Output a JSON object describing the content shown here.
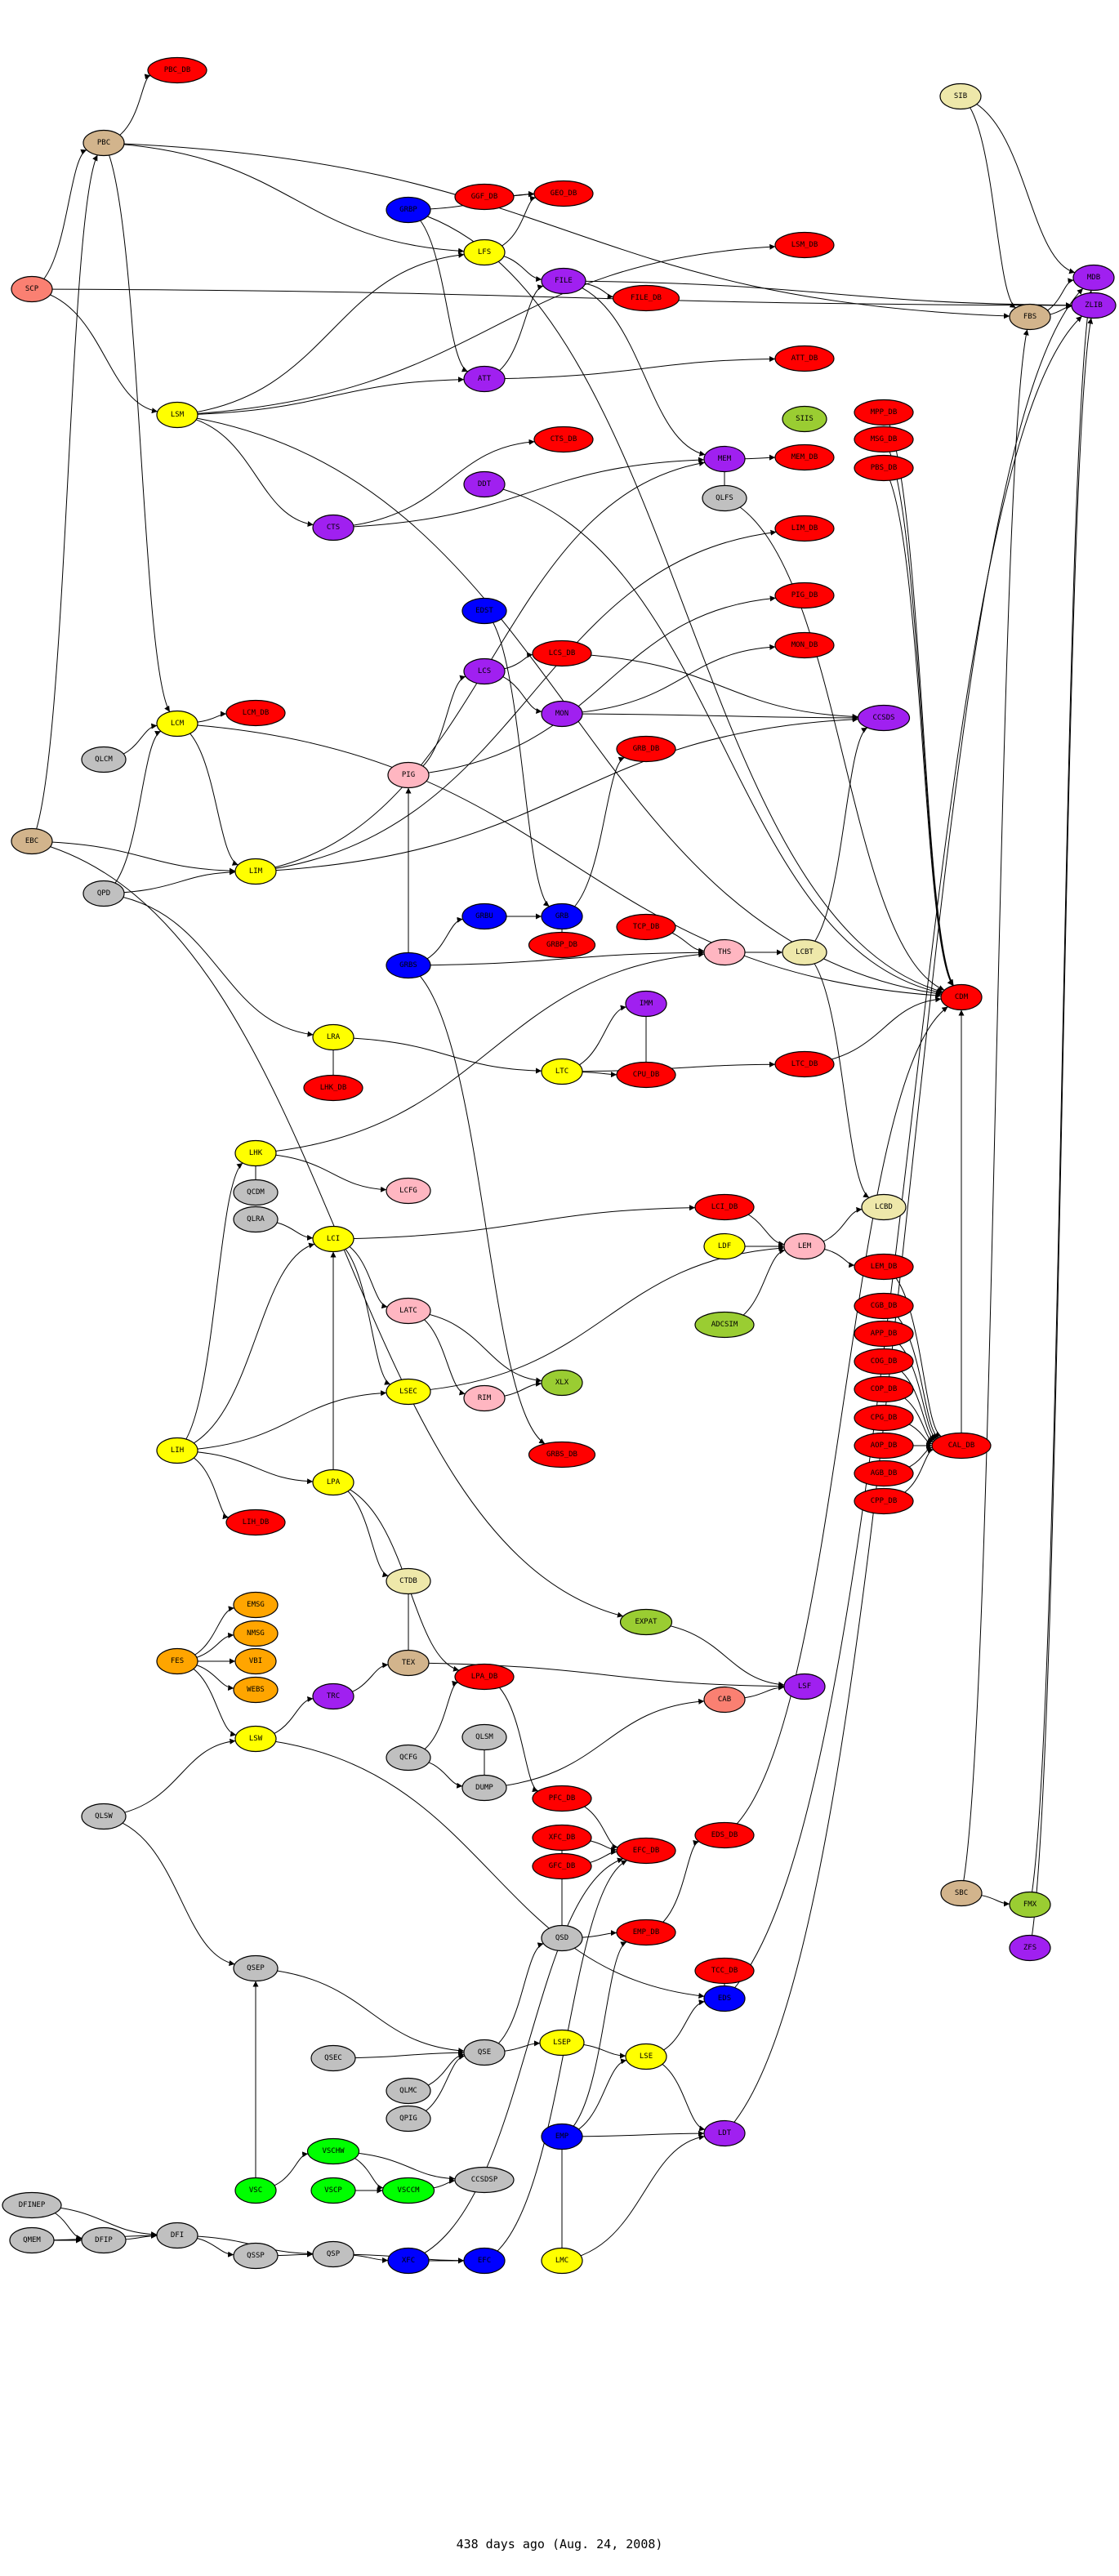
{
  "caption": "438 days ago (Aug. 24, 2008)",
  "colors": {
    "db": "#ff0000",
    "tan": "#d2b48c",
    "salmon": "#fa8072",
    "blue": "#0000ff",
    "yellow": "#ffff00",
    "purple": "#a020f0",
    "khaki": "#eee8aa",
    "pink": "#ffb6c1",
    "yellowgreen": "#9acd32",
    "gray": "#c0c0c0",
    "green": "#00ff00",
    "orange": "#ffa500"
  },
  "nodes": [
    {
      "label": "PBC_DB",
      "color": "#ff0000"
    },
    {
      "label": "PBC",
      "color": "#d2b48c"
    },
    {
      "label": "SCP",
      "color": "#fa8072"
    },
    {
      "label": "GRBP",
      "color": "#0000ff"
    },
    {
      "label": "GGF_DB",
      "color": "#ff0000"
    },
    {
      "label": "GEO_DB",
      "color": "#ff0000"
    },
    {
      "label": "LFS",
      "color": "#ffff00"
    },
    {
      "label": "FILE",
      "color": "#a020f0"
    },
    {
      "label": "LSM",
      "color": "#ffff00"
    },
    {
      "label": "ATT",
      "color": "#a020f0"
    },
    {
      "label": "CTS_DB",
      "color": "#ff0000"
    },
    {
      "label": "DDT",
      "color": "#a020f0"
    },
    {
      "label": "CTS",
      "color": "#a020f0"
    },
    {
      "label": "SIB",
      "color": "#eee8aa"
    },
    {
      "label": "LSM_DB",
      "color": "#ff0000"
    },
    {
      "label": "MDB",
      "color": "#a020f0"
    },
    {
      "label": "ZLIB",
      "color": "#a020f0"
    },
    {
      "label": "FBS",
      "color": "#d2b48c"
    },
    {
      "label": "FILE_DB",
      "color": "#ff0000"
    },
    {
      "label": "ATT_DB",
      "color": "#ff0000"
    },
    {
      "label": "SIIS",
      "color": "#9acd32"
    },
    {
      "label": "MPP_DB",
      "color": "#ff0000"
    },
    {
      "label": "MSG_DB",
      "color": "#ff0000"
    },
    {
      "label": "PBS_DB",
      "color": "#ff0000"
    },
    {
      "label": "MEM",
      "color": "#a020f0"
    },
    {
      "label": "MEM_DB",
      "color": "#ff0000"
    },
    {
      "label": "QLFS",
      "color": "#c0c0c0"
    },
    {
      "label": "LIM_DB",
      "color": "#ff0000"
    },
    {
      "label": "EDST",
      "color": "#0000ff"
    },
    {
      "label": "LCS_DB",
      "color": "#ff0000"
    },
    {
      "label": "LCS",
      "color": "#a020f0"
    },
    {
      "label": "MON",
      "color": "#a020f0"
    },
    {
      "label": "LCM",
      "color": "#ffff00"
    },
    {
      "label": "LCM_DB",
      "color": "#ff0000"
    },
    {
      "label": "QLCM",
      "color": "#c0c0c0"
    },
    {
      "label": "PIG",
      "color": "#ffb6c1"
    },
    {
      "label": "EBC",
      "color": "#d2b48c"
    },
    {
      "label": "LIM",
      "color": "#ffff00"
    },
    {
      "label": "QPD",
      "color": "#c0c0c0"
    },
    {
      "label": "GRBU",
      "color": "#0000ff"
    },
    {
      "label": "GRB",
      "color": "#0000ff"
    },
    {
      "label": "GRBP_DB",
      "color": "#ff0000"
    },
    {
      "label": "GRBS",
      "color": "#0000ff"
    },
    {
      "label": "LRA",
      "color": "#ffff00"
    },
    {
      "label": "LHK_DB",
      "color": "#ff0000"
    },
    {
      "label": "LTC",
      "color": "#ffff00"
    },
    {
      "label": "PIG_DB",
      "color": "#ff0000"
    },
    {
      "label": "MON_DB",
      "color": "#ff0000"
    },
    {
      "label": "CCSDS",
      "color": "#a020f0"
    },
    {
      "label": "GRB_DB",
      "color": "#ff0000"
    },
    {
      "label": "TCP_DB",
      "color": "#ff0000"
    },
    {
      "label": "THS",
      "color": "#ffb6c1"
    },
    {
      "label": "LCBT",
      "color": "#eee8aa"
    },
    {
      "label": "CDM",
      "color": "#ff0000"
    },
    {
      "label": "IMM",
      "color": "#a020f0"
    },
    {
      "label": "CPU_DB",
      "color": "#ff0000"
    },
    {
      "label": "LTC_DB",
      "color": "#ff0000"
    },
    {
      "label": "LHK",
      "color": "#ffff00"
    },
    {
      "label": "QCDM",
      "color": "#c0c0c0"
    },
    {
      "label": "QLRA",
      "color": "#c0c0c0"
    },
    {
      "label": "LCFG",
      "color": "#ffb6c1"
    },
    {
      "label": "LCI",
      "color": "#ffff00"
    },
    {
      "label": "LATC",
      "color": "#ffb6c1"
    },
    {
      "label": "LSEC",
      "color": "#ffff00"
    },
    {
      "label": "RIM",
      "color": "#ffb6c1"
    },
    {
      "label": "XLX",
      "color": "#9acd32"
    },
    {
      "label": "LIH",
      "color": "#ffff00"
    },
    {
      "label": "GRBS_DB",
      "color": "#ff0000"
    },
    {
      "label": "LPA",
      "color": "#ffff00"
    },
    {
      "label": "LIH_DB",
      "color": "#ff0000"
    },
    {
      "label": "CTDB",
      "color": "#eee8aa"
    },
    {
      "label": "EMSG",
      "color": "#ffa500"
    },
    {
      "label": "NMSG",
      "color": "#ffa500"
    },
    {
      "label": "FES",
      "color": "#ffa500"
    },
    {
      "label": "VBI",
      "color": "#ffa500"
    },
    {
      "label": "TEX",
      "color": "#d2b48c"
    },
    {
      "label": "LPA_DB",
      "color": "#ff0000"
    },
    {
      "label": "LCI_DB",
      "color": "#ff0000"
    },
    {
      "label": "LCBD",
      "color": "#eee8aa"
    },
    {
      "label": "LDF",
      "color": "#ffff00"
    },
    {
      "label": "LEM",
      "color": "#ffb6c1"
    },
    {
      "label": "LEM_DB",
      "color": "#ff0000"
    },
    {
      "label": "CGB_DB",
      "color": "#ff0000"
    },
    {
      "label": "APP_DB",
      "color": "#ff0000"
    },
    {
      "label": "COG_DB",
      "color": "#ff0000"
    },
    {
      "label": "COP_DB",
      "color": "#ff0000"
    },
    {
      "label": "CPG_DB",
      "color": "#ff0000"
    },
    {
      "label": "AOP_DB",
      "color": "#ff0000"
    },
    {
      "label": "AGB_DB",
      "color": "#ff0000"
    },
    {
      "label": "CPP_DB",
      "color": "#ff0000"
    },
    {
      "label": "CAL_DB",
      "color": "#ff0000"
    },
    {
      "label": "ADCSIM",
      "color": "#9acd32"
    },
    {
      "label": "EXPAT",
      "color": "#9acd32"
    },
    {
      "label": "LSF",
      "color": "#a020f0"
    },
    {
      "label": "WEBS",
      "color": "#ffa500"
    },
    {
      "label": "TRC",
      "color": "#a020f0"
    },
    {
      "label": "LSW",
      "color": "#ffff00"
    },
    {
      "label": "QLSM",
      "color": "#c0c0c0"
    },
    {
      "label": "QCFG",
      "color": "#c0c0c0"
    },
    {
      "label": "DUMP",
      "color": "#c0c0c0"
    },
    {
      "label": "QLSW",
      "color": "#c0c0c0"
    },
    {
      "label": "PFC_DB",
      "color": "#ff0000"
    },
    {
      "label": "XFC_DB",
      "color": "#ff0000"
    },
    {
      "label": "GFC_DB",
      "color": "#ff0000"
    },
    {
      "label": "QSD",
      "color": "#c0c0c0"
    },
    {
      "label": "QSEP",
      "color": "#c0c0c0"
    },
    {
      "label": "LSEP",
      "color": "#ffff00"
    },
    {
      "label": "QSE",
      "color": "#c0c0c0"
    },
    {
      "label": "QSEC",
      "color": "#c0c0c0"
    },
    {
      "label": "QLMC",
      "color": "#c0c0c0"
    },
    {
      "label": "QPIG",
      "color": "#c0c0c0"
    },
    {
      "label": "EMP",
      "color": "#0000ff"
    },
    {
      "label": "VSCHW",
      "color": "#00ff00"
    },
    {
      "label": "CCSDSP",
      "color": "#c0c0c0"
    },
    {
      "label": "VSC",
      "color": "#00ff00"
    },
    {
      "label": "VSCP",
      "color": "#00ff00"
    },
    {
      "label": "VSCCM",
      "color": "#00ff00"
    },
    {
      "label": "DFINEP",
      "color": "#c0c0c0"
    },
    {
      "label": "CAB",
      "color": "#fa8072"
    },
    {
      "label": "EFC_DB",
      "color": "#ff0000"
    },
    {
      "label": "EDS_DB",
      "color": "#ff0000"
    },
    {
      "label": "SBC",
      "color": "#d2b48c"
    },
    {
      "label": "FMX",
      "color": "#9acd32"
    },
    {
      "label": "ZFS",
      "color": "#a020f0"
    },
    {
      "label": "EMP_DB",
      "color": "#ff0000"
    },
    {
      "label": "TCC_DB",
      "color": "#ff0000"
    },
    {
      "label": "EDS",
      "color": "#0000ff"
    },
    {
      "label": "LSE",
      "color": "#ffff00"
    },
    {
      "label": "LDT",
      "color": "#a020f0"
    },
    {
      "label": "QMEM",
      "color": "#c0c0c0"
    },
    {
      "label": "DFIP",
      "color": "#c0c0c0"
    },
    {
      "label": "DFI",
      "color": "#c0c0c0"
    },
    {
      "label": "QSSP",
      "color": "#c0c0c0"
    },
    {
      "label": "QSP",
      "color": "#c0c0c0"
    },
    {
      "label": "XFC",
      "color": "#0000ff"
    },
    {
      "label": "EFC",
      "color": "#0000ff"
    },
    {
      "label": "LMC",
      "color": "#ffff00"
    }
  ],
  "edges": [
    [
      "PBC",
      "PBC_DB"
    ],
    [
      "SCP",
      "PBC"
    ],
    [
      "SCP",
      "LSM"
    ],
    [
      "EBC",
      "PBC"
    ],
    [
      "PBC",
      "LFS"
    ],
    [
      "PBC",
      "LCM"
    ],
    [
      "PBC",
      "FBS"
    ],
    [
      "GGF_DB",
      "GEO_DB"
    ],
    [
      "GRBP",
      "GEO_DB"
    ],
    [
      "GRBP",
      "ATT"
    ],
    [
      "GRBP",
      "CDM"
    ],
    [
      "LFS",
      "FILE"
    ],
    [
      "LFS",
      "GEO_DB"
    ],
    [
      "LSM",
      "ATT"
    ],
    [
      "LSM",
      "CTS"
    ],
    [
      "LSM",
      "LSM_DB"
    ],
    [
      "LSM",
      "LFS"
    ],
    [
      "FILE",
      "FILE_DB"
    ],
    [
      "FILE",
      "ZLIB"
    ],
    [
      "FILE",
      "MEM"
    ],
    [
      "ATT",
      "ATT_DB"
    ],
    [
      "ATT",
      "FILE"
    ],
    [
      "CTS",
      "CTS_DB"
    ],
    [
      "CTS",
      "MEM"
    ],
    [
      "DDT",
      "CDM"
    ],
    [
      "MEM",
      "MEM_DB"
    ],
    [
      "MEM",
      "QLFS"
    ],
    [
      "QLFS",
      "CDM"
    ],
    [
      "SIB",
      "FBS"
    ],
    [
      "SIB",
      "MDB"
    ],
    [
      "FBS",
      "MDB"
    ],
    [
      "FBS",
      "ZLIB"
    ],
    [
      "LIM",
      "LIM_DB"
    ],
    [
      "LIM",
      "MEM"
    ],
    [
      "LCM",
      "LCM_DB"
    ],
    [
      "QLCM",
      "LCM"
    ],
    [
      "LCM",
      "LIM"
    ],
    [
      "EBC",
      "LIM"
    ],
    [
      "QPD",
      "LIM"
    ],
    [
      "QPD",
      "LCM"
    ],
    [
      "QPD",
      "LRA"
    ],
    [
      "PIG",
      "LCS"
    ],
    [
      "LCS",
      "LCS_DB"
    ],
    [
      "LCS",
      "MON"
    ],
    [
      "EDST",
      "GRB"
    ],
    [
      "GRBU",
      "GRB"
    ],
    [
      "GRBS",
      "GRBU"
    ],
    [
      "GRBS",
      "PIG"
    ],
    [
      "GRB",
      "GRBP_DB"
    ],
    [
      "GRB",
      "GRB_DB"
    ],
    [
      "LRA",
      "LHK_DB"
    ],
    [
      "LTC",
      "CPU_DB"
    ],
    [
      "LTC",
      "IMM"
    ],
    [
      "LTC",
      "LTC_DB"
    ],
    [
      "PIG",
      "PIG_DB"
    ],
    [
      "MON",
      "MON_DB"
    ],
    [
      "MON",
      "CCSDS"
    ],
    [
      "THS",
      "LCBT"
    ],
    [
      "LCBT",
      "CCSDS"
    ],
    [
      "LCBT",
      "LCBD"
    ],
    [
      "IMM",
      "CPU_DB"
    ],
    [
      "GRBS",
      "THS"
    ],
    [
      "TCP_DB",
      "THS"
    ],
    [
      "MSG_DB",
      "CDM"
    ],
    [
      "PBS_DB",
      "CDM"
    ],
    [
      "MPP_DB",
      "CDM"
    ],
    [
      "LCS_DB",
      "CCSDS"
    ],
    [
      "LHK",
      "LCFG"
    ],
    [
      "QLRA",
      "LCI"
    ],
    [
      "QCDM",
      "LHK"
    ],
    [
      "LCI",
      "LATC"
    ],
    [
      "LCI",
      "LSEC"
    ],
    [
      "LCI",
      "LCI_DB"
    ],
    [
      "LATC",
      "RIM"
    ],
    [
      "RIM",
      "XLX"
    ],
    [
      "LATC",
      "XLX"
    ],
    [
      "LSEC",
      "LEM"
    ],
    [
      "LIH",
      "LIH_DB"
    ],
    [
      "LIH",
      "LPA"
    ],
    [
      "LIH",
      "LCI"
    ],
    [
      "LIH",
      "LHK"
    ],
    [
      "LIH",
      "LSEC"
    ],
    [
      "LPA",
      "CTDB"
    ],
    [
      "LPA",
      "LPA_DB"
    ],
    [
      "LPA",
      "LCI"
    ],
    [
      "FES",
      "EMSG"
    ],
    [
      "FES",
      "NMSG"
    ],
    [
      "FES",
      "VBI"
    ],
    [
      "FES",
      "WEBS"
    ],
    [
      "FES",
      "LSW"
    ],
    [
      "LDF",
      "LEM"
    ],
    [
      "LEM",
      "LCBD"
    ],
    [
      "LEM",
      "LEM_DB"
    ],
    [
      "ADCSIM",
      "LEM"
    ],
    [
      "LCI_DB",
      "LEM"
    ],
    [
      "LEM_DB",
      "CAL_DB"
    ],
    [
      "CGB_DB",
      "CAL_DB"
    ],
    [
      "APP_DB",
      "CAL_DB"
    ],
    [
      "COG_DB",
      "CAL_DB"
    ],
    [
      "COP_DB",
      "CAL_DB"
    ],
    [
      "CPG_DB",
      "CAL_DB"
    ],
    [
      "AOP_DB",
      "CAL_DB"
    ],
    [
      "AGB_DB",
      "CAL_DB"
    ],
    [
      "CPP_DB",
      "CAL_DB"
    ],
    [
      "LTC_DB",
      "CDM"
    ],
    [
      "CAL_DB",
      "CDM"
    ],
    [
      "CTDB",
      "TEX"
    ],
    [
      "TRC",
      "TEX"
    ],
    [
      "LSW",
      "TRC"
    ],
    [
      "QLSW",
      "LSW"
    ],
    [
      "QLSW",
      "QSEP"
    ],
    [
      "QCFG",
      "DUMP"
    ],
    [
      "QCFG",
      "LPA_DB"
    ],
    [
      "QLSM",
      "DUMP"
    ],
    [
      "LPA_DB",
      "PFC_DB"
    ],
    [
      "PFC_DB",
      "EFC_DB"
    ],
    [
      "XFC_DB",
      "EFC_DB"
    ],
    [
      "GFC_DB",
      "EFC_DB"
    ],
    [
      "QSD",
      "GFC_DB"
    ],
    [
      "QSD",
      "XFC_DB"
    ],
    [
      "QSD",
      "EMP_DB"
    ],
    [
      "EMP_DB",
      "EDS_DB"
    ],
    [
      "TCC_DB",
      "EDS"
    ],
    [
      "LSE",
      "EDS"
    ],
    [
      "LSE",
      "LDT"
    ],
    [
      "EMP",
      "LSE"
    ],
    [
      "EMP",
      "LDT"
    ],
    [
      "EMP",
      "EMP_DB"
    ],
    [
      "LSEP",
      "LSE"
    ],
    [
      "QSE",
      "QSD"
    ],
    [
      "QSE",
      "LSEP"
    ],
    [
      "QSEC",
      "QSE"
    ],
    [
      "QLMC",
      "QSE"
    ],
    [
      "QPIG",
      "QSE"
    ],
    [
      "QSEP",
      "QSE"
    ],
    [
      "VSC",
      "VSCHW"
    ],
    [
      "VSCHW",
      "VSCCM"
    ],
    [
      "VSCP",
      "VSCCM"
    ],
    [
      "VSCCM",
      "CCSDSP"
    ],
    [
      "VSCHW",
      "CCSDSP"
    ],
    [
      "VSC",
      "QSEP"
    ],
    [
      "DFINEP",
      "DFIP"
    ],
    [
      "DFINEP",
      "DFI"
    ],
    [
      "QMEM",
      "DFIP"
    ],
    [
      "QMEM",
      "DFI"
    ],
    [
      "DFIP",
      "DFI"
    ],
    [
      "DFI",
      "QSSP"
    ],
    [
      "DFI",
      "QSP"
    ],
    [
      "QSSP",
      "QSP"
    ],
    [
      "QSP",
      "XFC"
    ],
    [
      "XFC",
      "EFC"
    ],
    [
      "QSP",
      "EFC"
    ],
    [
      "XFC",
      "EFC_DB"
    ],
    [
      "EFC",
      "EFC_DB"
    ],
    [
      "LMC",
      "EMP"
    ],
    [
      "LMC",
      "LDT"
    ],
    [
      "SBC",
      "FMX"
    ],
    [
      "ZFS",
      "ZLIB"
    ],
    [
      "FMX",
      "MDB"
    ],
    [
      "SBC",
      "FBS"
    ],
    [
      "CAB",
      "LSF"
    ],
    [
      "EXPAT",
      "LSF"
    ],
    [
      "LSM",
      "CDM"
    ],
    [
      "LCM",
      "CDM"
    ],
    [
      "LIM",
      "CCSDS"
    ],
    [
      "LSW",
      "EDS"
    ],
    [
      "TEX",
      "LSF"
    ],
    [
      "DUMP",
      "CAB"
    ],
    [
      "EDS_DB",
      "CDM"
    ],
    [
      "EDS",
      "ZLIB"
    ],
    [
      "LDT",
      "MDB"
    ],
    [
      "GRBS",
      "GRBS_DB"
    ],
    [
      "EBC",
      "EXPAT"
    ],
    [
      "SCP",
      "ZLIB"
    ],
    [
      "LRA",
      "LTC"
    ],
    [
      "LHK",
      "THS"
    ]
  ]
}
